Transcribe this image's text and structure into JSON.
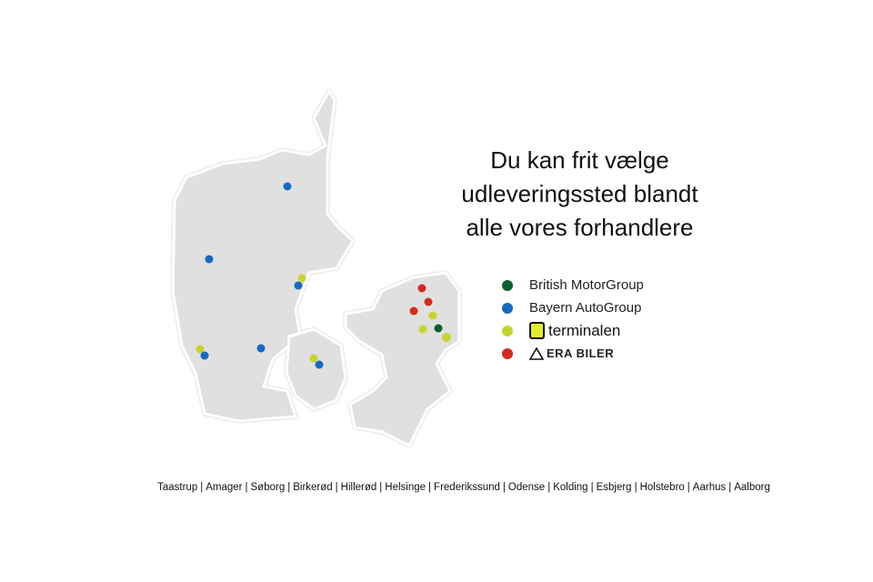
{
  "title": [
    "Du kan frit vælge",
    "udleveringssted blandt",
    "alle vores forhandlere"
  ],
  "colors": {
    "map_fill": "#e0e0e0",
    "british": "#0b5e2f",
    "bayern": "#1769c2",
    "terminalen": "#c5d52e",
    "era": "#d32a1e"
  },
  "legend": [
    {
      "key": "british",
      "label": "British MotorGroup"
    },
    {
      "key": "bayern",
      "label": "Bayern AutoGroup"
    },
    {
      "key": "terminalen",
      "label": "terminalen",
      "icon": "terminalen-logo-icon"
    },
    {
      "key": "era",
      "label": "ERA BILER",
      "icon": "era-logo-icon"
    }
  ],
  "cities": [
    "Taastrup",
    "Amager",
    "Søborg",
    "Birkerød",
    "Hillerød",
    "Helsinge",
    "Frederikssund",
    "Odense",
    "Kolding",
    "Esbjerg",
    "Holstebro",
    "Aarhus",
    "Aalborg"
  ]
}
